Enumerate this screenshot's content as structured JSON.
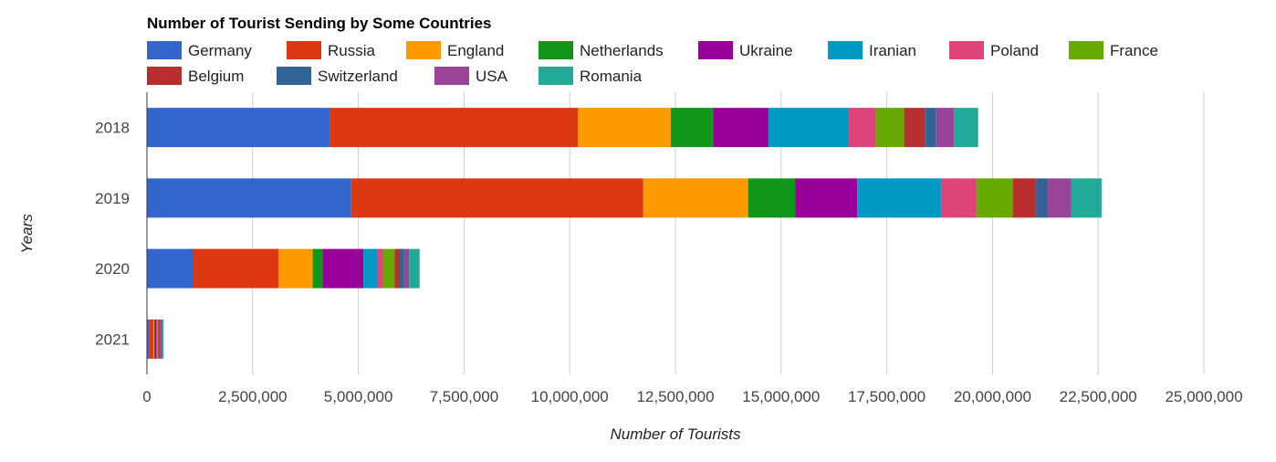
{
  "chart_data": {
    "type": "bar",
    "orientation": "horizontal",
    "stacked": true,
    "title": "Number of Tourist Sending by Some Countries",
    "xlabel": "Number of Tourists",
    "ylabel": "Years",
    "categories": [
      "2018",
      "2019",
      "2020",
      "2021"
    ],
    "xlim": [
      0,
      25000000
    ],
    "x_ticks": [
      "0",
      "2,500,000",
      "5,000,000",
      "7,500,000",
      "10,000,000",
      "12,500,000",
      "15,000,000",
      "17,500,000",
      "20,000,000",
      "22,500,000",
      "25,000,000"
    ],
    "grid": true,
    "legend_position": "top",
    "series": [
      {
        "name": "Germany",
        "color": "#3366cc",
        "values": [
          4320000,
          4830000,
          1090000,
          60000
        ]
      },
      {
        "name": "Russia",
        "color": "#dc3912",
        "values": [
          5870000,
          6910000,
          2020000,
          90000
        ]
      },
      {
        "name": "England",
        "color": "#ff9900",
        "values": [
          2200000,
          2480000,
          810000,
          20000
        ]
      },
      {
        "name": "Netherlands",
        "color": "#109618",
        "values": [
          1000000,
          1110000,
          230000,
          10000
        ]
      },
      {
        "name": "Ukraine",
        "color": "#990099",
        "values": [
          1310000,
          1470000,
          970000,
          40000
        ]
      },
      {
        "name": "Iranian",
        "color": "#0099c6",
        "values": [
          1890000,
          1980000,
          320000,
          20000
        ]
      },
      {
        "name": "Poland",
        "color": "#dd4477",
        "values": [
          640000,
          850000,
          150000,
          10000
        ]
      },
      {
        "name": "France",
        "color": "#66aa00",
        "values": [
          680000,
          850000,
          270000,
          20000
        ]
      },
      {
        "name": "Belgium",
        "color": "#b82e2e",
        "values": [
          500000,
          540000,
          120000,
          30000
        ]
      },
      {
        "name": "Switzerland",
        "color": "#316395",
        "values": [
          250000,
          290000,
          100000,
          20000
        ]
      },
      {
        "name": "USA",
        "color": "#994499",
        "values": [
          430000,
          550000,
          120000,
          40000
        ]
      },
      {
        "name": "Romania",
        "color": "#22aa99",
        "values": [
          570000,
          720000,
          250000,
          30000
        ]
      }
    ]
  }
}
